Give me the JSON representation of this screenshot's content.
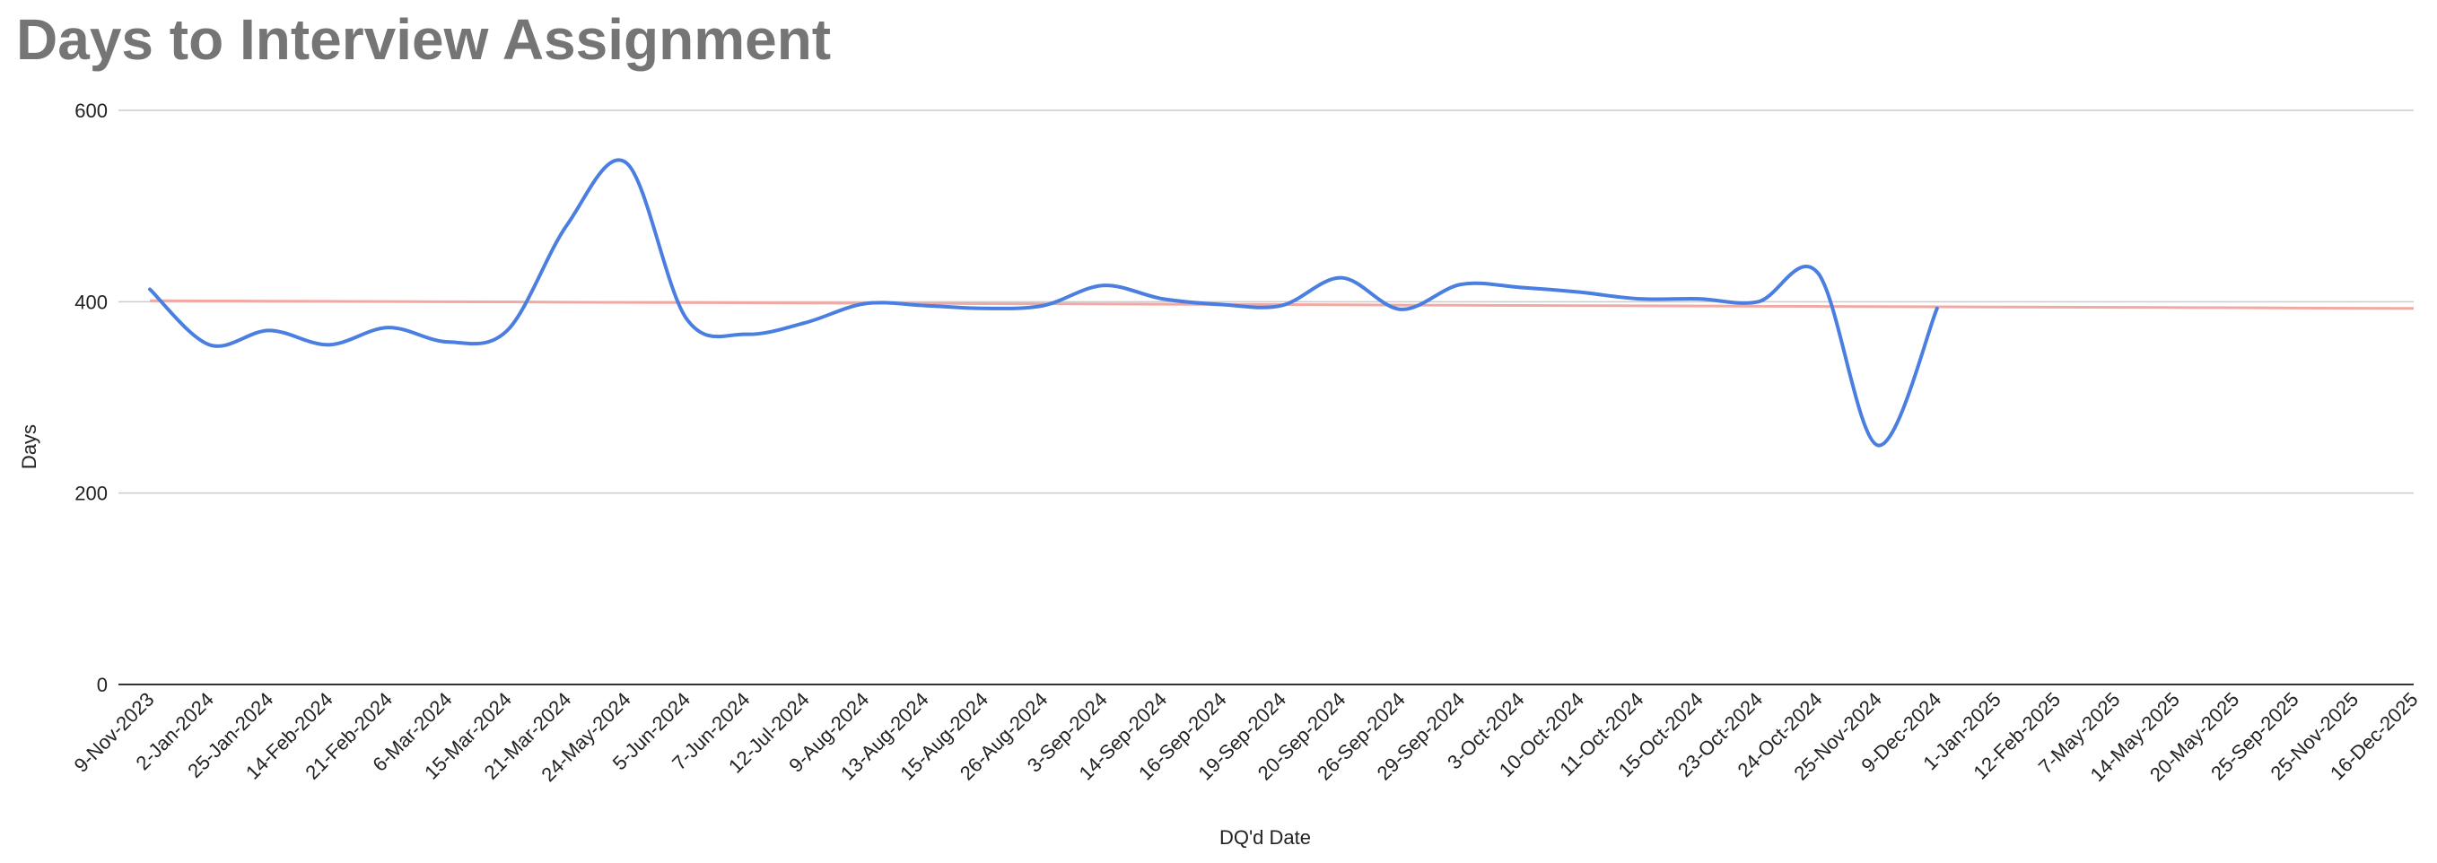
{
  "chart_data": {
    "type": "line",
    "title": "Days to Interview Assignment",
    "xlabel": "DQ'd Date",
    "ylabel": "Days",
    "ylim": [
      0,
      600
    ],
    "yticks": [
      0,
      200,
      400,
      600
    ],
    "grid": true,
    "categories": [
      "9-Nov-2023",
      "2-Jan-2024",
      "25-Jan-2024",
      "14-Feb-2024",
      "21-Feb-2024",
      "6-Mar-2024",
      "15-Mar-2024",
      "21-Mar-2024",
      "24-May-2024",
      "5-Jun-2024",
      "7-Jun-2024",
      "12-Jul-2024",
      "9-Aug-2024",
      "13-Aug-2024",
      "15-Aug-2024",
      "26-Aug-2024",
      "3-Sep-2024",
      "14-Sep-2024",
      "16-Sep-2024",
      "19-Sep-2024",
      "20-Sep-2024",
      "26-Sep-2024",
      "29-Sep-2024",
      "3-Oct-2024",
      "10-Oct-2024",
      "11-Oct-2024",
      "15-Oct-2024",
      "23-Oct-2024",
      "24-Oct-2024",
      "25-Nov-2024",
      "9-Dec-2024",
      "1-Jan-2025",
      "12-Feb-2025",
      "7-May-2025",
      "14-May-2025",
      "20-May-2025",
      "25-Sep-2025",
      "25-Nov-2025",
      "16-Dec-2025"
    ],
    "series": [
      {
        "color": "#4a7ee0",
        "values": [
          413,
          355,
          370,
          355,
          373,
          358,
          370,
          480,
          545,
          383,
          366,
          378,
          398,
          396,
          393,
          396,
          417,
          403,
          397,
          396,
          425,
          392,
          418,
          415,
          410,
          403,
          403,
          400,
          430,
          250,
          393,
          null,
          null,
          null,
          null,
          null,
          null,
          null,
          null
        ]
      },
      {
        "color": "#f1a9a4",
        "values": [
          401,
          400.8,
          400.6,
          400.4,
          400.2,
          400,
          399.8,
          399.5,
          399.3,
          399.1,
          398.9,
          398.7,
          398.5,
          398.3,
          398,
          397.8,
          397.6,
          397.4,
          397.2,
          397,
          396.8,
          396.5,
          396.3,
          396.1,
          395.9,
          395.7,
          395.5,
          395.3,
          395.1,
          394.9,
          394.7,
          394.5,
          394.3,
          394.1,
          393.9,
          393.7,
          393.4,
          393.2,
          393
        ]
      }
    ]
  }
}
